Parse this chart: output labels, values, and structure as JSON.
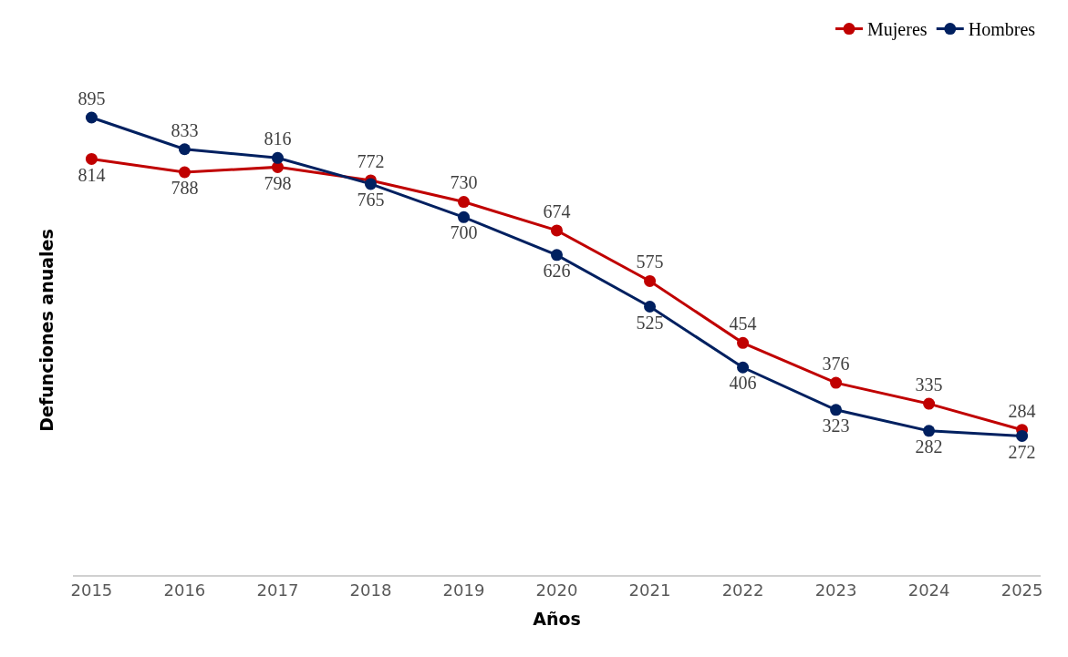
{
  "chart_data": {
    "type": "line",
    "xlabel": "Años",
    "ylabel": "Defunciones anuales",
    "categories": [
      "2015",
      "2016",
      "2017",
      "2018",
      "2019",
      "2020",
      "2021",
      "2022",
      "2023",
      "2024",
      "2025"
    ],
    "series": [
      {
        "name": "Mujeres",
        "color": "#c00000",
        "values": [
          814,
          788,
          798,
          772,
          730,
          674,
          575,
          454,
          376,
          335,
          284
        ]
      },
      {
        "name": "Hombres",
        "color": "#002060",
        "values": [
          895,
          833,
          816,
          765,
          700,
          626,
          525,
          406,
          323,
          282,
          272
        ]
      }
    ],
    "data_labels": true,
    "marker": "circle",
    "line_style": "solid",
    "legend": "top right",
    "tick_labels": "x"
  }
}
